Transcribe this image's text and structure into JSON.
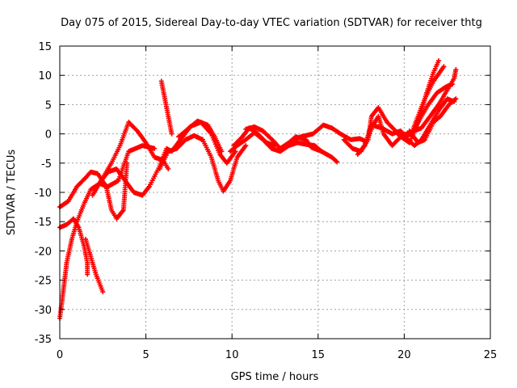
{
  "chart_data": {
    "type": "scatter",
    "title": "Day 075 of 2015, Sidereal Day-to-day VTEC variation (SDTVAR) for receiver thtg",
    "xlabel": "GPS time / hours",
    "ylabel": "SDTVAR / TECUs",
    "xlim": [
      0,
      25
    ],
    "ylim": [
      -35,
      15
    ],
    "xticks": [
      0,
      5,
      10,
      15,
      20,
      25
    ],
    "yticks": [
      -35,
      -30,
      -25,
      -20,
      -15,
      -10,
      -5,
      0,
      5,
      10,
      15
    ],
    "grid": true,
    "marker": "+",
    "color": "#ff0000",
    "series": [
      {
        "name": "satellite track 1",
        "points": [
          [
            0.0,
            -31.5
          ],
          [
            0.2,
            -27
          ],
          [
            0.4,
            -22
          ],
          [
            0.7,
            -18
          ],
          [
            1.0,
            -15
          ],
          [
            1.4,
            -12
          ],
          [
            1.8,
            -9.5
          ],
          [
            2.3,
            -8.5
          ],
          [
            2.8,
            -9
          ],
          [
            3.4,
            -8
          ],
          [
            4.0,
            -3
          ],
          [
            4.8,
            -2
          ],
          [
            5.5,
            -2.5
          ]
        ]
      },
      {
        "name": "satellite track 2",
        "points": [
          [
            0.0,
            -16
          ],
          [
            0.4,
            -15.5
          ],
          [
            0.8,
            -14.5
          ],
          [
            1.1,
            -16
          ],
          [
            1.4,
            -19
          ],
          [
            1.6,
            -22
          ],
          [
            1.6,
            -24
          ]
        ]
      },
      {
        "name": "satellite track 3",
        "points": [
          [
            0.0,
            -12.5
          ],
          [
            0.5,
            -11.5
          ],
          [
            1.0,
            -9
          ],
          [
            1.5,
            -7.5
          ],
          [
            1.8,
            -6.5
          ],
          [
            2.2,
            -6.8
          ],
          [
            2.7,
            -9
          ],
          [
            3.0,
            -13
          ],
          [
            3.3,
            -14.5
          ],
          [
            3.7,
            -13
          ],
          [
            3.9,
            -5
          ]
        ]
      },
      {
        "name": "satellite track 4",
        "points": [
          [
            1.5,
            -18
          ],
          [
            1.8,
            -21
          ],
          [
            2.1,
            -24
          ],
          [
            2.5,
            -27
          ]
        ]
      },
      {
        "name": "satellite track 5",
        "points": [
          [
            1.9,
            -10.5
          ],
          [
            2.4,
            -8
          ],
          [
            2.8,
            -6.5
          ],
          [
            3.3,
            -6
          ],
          [
            3.8,
            -8
          ],
          [
            4.3,
            -10
          ],
          [
            4.8,
            -10.5
          ],
          [
            5.2,
            -9
          ],
          [
            5.8,
            -5.5
          ],
          [
            6.2,
            -2.5
          ],
          [
            6.5,
            -3
          ],
          [
            7.0,
            -1
          ],
          [
            7.6,
            1.3
          ],
          [
            8.2,
            2
          ],
          [
            8.8,
            0
          ],
          [
            9.3,
            -3.5
          ],
          [
            9.7,
            -5
          ],
          [
            10.2,
            -3
          ]
        ]
      },
      {
        "name": "satellite track 6",
        "points": [
          [
            2.3,
            -8.5
          ],
          [
            3.0,
            -5
          ],
          [
            3.5,
            -2
          ],
          [
            4.0,
            2
          ],
          [
            4.5,
            0.5
          ],
          [
            5.0,
            -1.5
          ],
          [
            5.5,
            -4
          ],
          [
            6.0,
            -4.5
          ],
          [
            6.3,
            -6
          ]
        ]
      },
      {
        "name": "satellite track 7",
        "points": [
          [
            5.9,
            9
          ],
          [
            6.1,
            6
          ],
          [
            6.3,
            3
          ],
          [
            6.5,
            0
          ]
        ]
      },
      {
        "name": "satellite track 8",
        "points": [
          [
            5.8,
            -6
          ],
          [
            6.3,
            -3
          ],
          [
            6.8,
            -2.5
          ],
          [
            7.3,
            -1
          ],
          [
            7.8,
            -0.3
          ],
          [
            8.3,
            -1
          ],
          [
            8.8,
            -4
          ],
          [
            9.2,
            -8
          ],
          [
            9.5,
            -9.8
          ],
          [
            9.9,
            -8
          ],
          [
            10.3,
            -4
          ],
          [
            10.8,
            -2
          ]
        ]
      },
      {
        "name": "satellite track 9",
        "points": [
          [
            6.9,
            -0.5
          ],
          [
            7.5,
            1
          ],
          [
            8.0,
            2.2
          ],
          [
            8.6,
            1.5
          ],
          [
            9.0,
            -0.5
          ],
          [
            9.4,
            -3
          ]
        ]
      },
      {
        "name": "satellite track 10",
        "points": [
          [
            9.9,
            -3
          ],
          [
            10.3,
            -2
          ],
          [
            10.8,
            -1
          ],
          [
            11.3,
            0.2
          ],
          [
            11.8,
            -1
          ],
          [
            12.3,
            -2.5
          ],
          [
            12.8,
            -3
          ],
          [
            13.3,
            -2
          ],
          [
            13.8,
            -1.5
          ],
          [
            14.3,
            -1.8
          ],
          [
            14.8,
            -2
          ],
          [
            15.2,
            -3
          ]
        ]
      },
      {
        "name": "satellite track 11",
        "points": [
          [
            10.1,
            -2
          ],
          [
            10.6,
            -0.5
          ],
          [
            11.0,
            1
          ],
          [
            11.5,
            0
          ],
          [
            12.0,
            -1.5
          ],
          [
            12.5,
            -2
          ]
        ]
      },
      {
        "name": "satellite track 12",
        "points": [
          [
            10.8,
            0.8
          ],
          [
            11.3,
            1.2
          ],
          [
            11.8,
            0.5
          ],
          [
            12.4,
            -1.2
          ],
          [
            12.8,
            -2.5
          ],
          [
            13.3,
            -1.5
          ],
          [
            13.7,
            -0.5
          ],
          [
            14.3,
            -1
          ],
          [
            14.6,
            -2.3
          ],
          [
            15.2,
            -3
          ],
          [
            15.8,
            -4
          ],
          [
            16.1,
            -4.8
          ]
        ]
      },
      {
        "name": "satellite track 13",
        "points": [
          [
            13.3,
            -1.5
          ],
          [
            14.0,
            -0.5
          ],
          [
            14.7,
            0
          ],
          [
            15.3,
            1.5
          ],
          [
            15.8,
            1
          ],
          [
            16.3,
            0
          ],
          [
            16.9,
            -1
          ],
          [
            17.4,
            -0.8
          ],
          [
            17.8,
            -1.3
          ],
          [
            18.2,
            1.5
          ],
          [
            18.5,
            3
          ],
          [
            18.8,
            0
          ],
          [
            19.3,
            -2
          ],
          [
            19.8,
            -0.5
          ],
          [
            20.3,
            -1.5
          ],
          [
            20.8,
            2
          ],
          [
            21.3,
            7
          ],
          [
            21.7,
            10.5
          ],
          [
            22.0,
            12.5
          ]
        ]
      },
      {
        "name": "satellite track 14",
        "points": [
          [
            16.5,
            -1
          ],
          [
            17.0,
            -2.5
          ],
          [
            17.5,
            -3
          ],
          [
            17.9,
            -1
          ],
          [
            18.1,
            3
          ],
          [
            18.5,
            4.5
          ],
          [
            19.0,
            2
          ],
          [
            19.5,
            0.5
          ],
          [
            19.9,
            -0.5
          ],
          [
            20.4,
            0
          ],
          [
            20.8,
            3
          ],
          [
            21.2,
            6
          ],
          [
            21.7,
            9
          ],
          [
            22.3,
            11.5
          ]
        ]
      },
      {
        "name": "satellite track 15",
        "points": [
          [
            17.3,
            -3.5
          ],
          [
            17.7,
            -2
          ],
          [
            18.1,
            1.5
          ],
          [
            18.7,
            1
          ],
          [
            19.3,
            0
          ],
          [
            19.8,
            0.5
          ],
          [
            20.2,
            -1
          ],
          [
            20.6,
            -2
          ],
          [
            21.0,
            -1
          ],
          [
            21.5,
            1.5
          ],
          [
            22.0,
            4
          ],
          [
            22.5,
            6
          ],
          [
            22.9,
            5.5
          ]
        ]
      },
      {
        "name": "satellite track 16",
        "points": [
          [
            19.6,
            0
          ],
          [
            20.1,
            -0.5
          ],
          [
            20.6,
            0.5
          ],
          [
            21.0,
            1
          ],
          [
            21.5,
            3
          ],
          [
            22.0,
            5
          ],
          [
            22.5,
            7.5
          ],
          [
            22.9,
            9.5
          ],
          [
            23.0,
            11
          ]
        ]
      },
      {
        "name": "satellite track 17",
        "points": [
          [
            20.3,
            0.5
          ],
          [
            20.8,
            -1.5
          ],
          [
            21.2,
            -1
          ],
          [
            21.7,
            2
          ],
          [
            22.1,
            3
          ],
          [
            22.6,
            5
          ],
          [
            23.0,
            6
          ]
        ]
      },
      {
        "name": "satellite track 18",
        "points": [
          [
            19.8,
            -0.3
          ],
          [
            20.5,
            0.3
          ],
          [
            21.0,
            3
          ],
          [
            21.4,
            5
          ],
          [
            21.9,
            7
          ],
          [
            22.4,
            8
          ],
          [
            22.8,
            8.5
          ]
        ]
      }
    ]
  }
}
